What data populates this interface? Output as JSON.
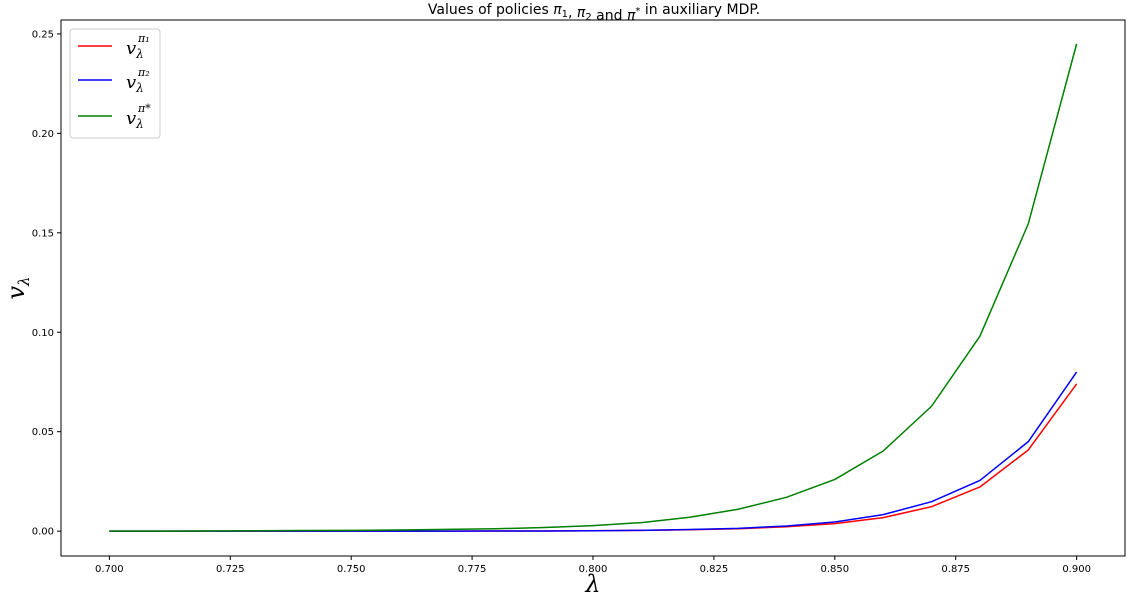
{
  "chart_data": {
    "type": "line",
    "title": "Values of policies π₁, π₂ and π* in auxiliary MDP.",
    "xlabel": "λ",
    "ylabel": "v_λ",
    "xlim": [
      0.69,
      0.91
    ],
    "ylim": [
      -0.0125,
      0.257
    ],
    "x_ticks": [
      0.7,
      0.725,
      0.75,
      0.775,
      0.8,
      0.825,
      0.85,
      0.875,
      0.9
    ],
    "x_tick_labels": [
      "0.700",
      "0.725",
      "0.750",
      "0.775",
      "0.800",
      "0.825",
      "0.850",
      "0.875",
      "0.900"
    ],
    "y_ticks": [
      0,
      0.05,
      0.1,
      0.15,
      0.2,
      0.25
    ],
    "y_tick_labels": [
      "0.00",
      "0.05",
      "0.10",
      "0.15",
      "0.20",
      "0.25"
    ],
    "grid": false,
    "legend_position": "top-left",
    "x": [
      0.7,
      0.71,
      0.72,
      0.73,
      0.74,
      0.75,
      0.76,
      0.77,
      0.78,
      0.79,
      0.8,
      0.81,
      0.82,
      0.83,
      0.84,
      0.85,
      0.86,
      0.87,
      0.88,
      0.89,
      0.9
    ],
    "series": [
      {
        "name": "v_λ^{π₁}",
        "legend_base": "v",
        "legend_sub": "λ",
        "legend_sup": "π₁",
        "color": "#ff0000",
        "values": [
          0.0,
          0.0,
          0.0,
          0.0,
          0.0,
          0.0,
          0.0,
          0.0,
          0.0001,
          0.0001,
          0.0002,
          0.0004,
          0.0007,
          0.0012,
          0.0022,
          0.0038,
          0.0068,
          0.0123,
          0.0222,
          0.0408,
          0.074
        ]
      },
      {
        "name": "v_λ^{π₂}",
        "legend_base": "v",
        "legend_sub": "λ",
        "legend_sup": "π₂",
        "color": "#0000ff",
        "values": [
          0.0,
          0.0,
          0.0,
          0.0,
          0.0,
          0.0,
          0.0,
          0.0,
          0.0001,
          0.0001,
          0.0002,
          0.0004,
          0.0008,
          0.0014,
          0.0026,
          0.0046,
          0.0083,
          0.0148,
          0.0255,
          0.045,
          0.08
        ]
      },
      {
        "name": "v_λ^{π*}",
        "legend_base": "v",
        "legend_sub": "λ",
        "legend_sup": "π*",
        "color": "#008000",
        "values": [
          0.0,
          0.0,
          0.0001,
          0.0002,
          0.0003,
          0.0004,
          0.0006,
          0.0009,
          0.0012,
          0.0018,
          0.0028,
          0.0043,
          0.007,
          0.011,
          0.017,
          0.026,
          0.0403,
          0.0628,
          0.098,
          0.1545,
          0.245
        ]
      }
    ]
  }
}
